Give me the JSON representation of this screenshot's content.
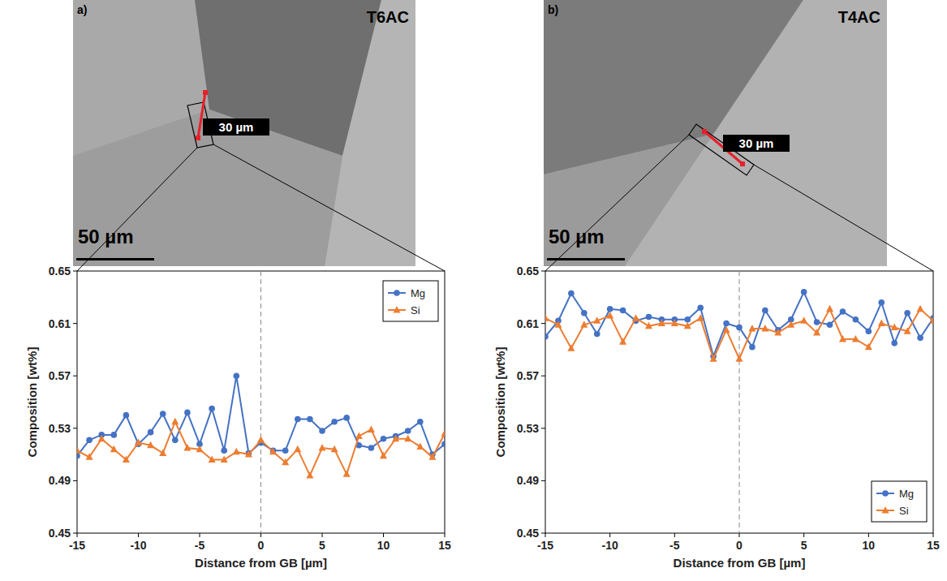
{
  "chart_data": [
    {
      "type": "line",
      "panel_label": "a)",
      "title": "T6AC",
      "annotations": [
        "30 µm",
        "50 µm"
      ],
      "x_label": "Distance from GB [µm]",
      "y_label": "Composition [wt%]",
      "x": [
        -15,
        -14,
        -13,
        -12,
        -11,
        -10,
        -9,
        -8,
        -7,
        -6,
        -5,
        -4,
        -3,
        -2,
        -1,
        0,
        1,
        2,
        3,
        4,
        5,
        6,
        7,
        8,
        9,
        10,
        11,
        12,
        13,
        14,
        15
      ],
      "xlim": [
        -15,
        15
      ],
      "xticks": [
        -15,
        -10,
        -5,
        0,
        5,
        10,
        15
      ],
      "ylim": [
        0.45,
        0.65
      ],
      "yticks": [
        0.45,
        0.49,
        0.53,
        0.57,
        0.61,
        0.65
      ],
      "legend": "upper right",
      "series": [
        {
          "name": "Mg",
          "color": "#4472c4",
          "marker": "circle",
          "line_style": "solid",
          "values": [
            0.509,
            0.521,
            0.525,
            0.525,
            0.54,
            0.518,
            0.527,
            0.541,
            0.521,
            0.542,
            0.518,
            0.545,
            0.513,
            0.57,
            0.511,
            0.519,
            0.513,
            0.513,
            0.537,
            0.537,
            0.528,
            0.535,
            0.538,
            0.517,
            0.515,
            0.522,
            0.524,
            0.528,
            0.535,
            0.51,
            0.518
          ]
        },
        {
          "name": "Si",
          "color": "#ed7d31",
          "marker": "triangle",
          "line_style": "solid",
          "values": [
            0.513,
            0.508,
            0.522,
            0.514,
            0.506,
            0.519,
            0.517,
            0.511,
            0.535,
            0.515,
            0.514,
            0.506,
            0.506,
            0.512,
            0.51,
            0.521,
            0.512,
            0.504,
            0.514,
            0.494,
            0.515,
            0.514,
            0.495,
            0.524,
            0.529,
            0.509,
            0.522,
            0.522,
            0.516,
            0.508,
            0.526
          ]
        }
      ]
    },
    {
      "type": "line",
      "panel_label": "b)",
      "title": "T4AC",
      "annotations": [
        "30 µm",
        "50 µm"
      ],
      "x_label": "Distance from GB [µm]",
      "y_label": "Composition [wt%]",
      "x": [
        -15,
        -14,
        -13,
        -12,
        -11,
        -10,
        -9,
        -8,
        -7,
        -6,
        -5,
        -4,
        -3,
        -2,
        -1,
        0,
        1,
        2,
        3,
        4,
        5,
        6,
        7,
        8,
        9,
        10,
        11,
        12,
        13,
        14,
        15
      ],
      "xlim": [
        -15,
        15
      ],
      "xticks": [
        -15,
        -10,
        -5,
        0,
        5,
        10,
        15
      ],
      "ylim": [
        0.45,
        0.65
      ],
      "yticks": [
        0.45,
        0.49,
        0.53,
        0.57,
        0.61,
        0.65
      ],
      "legend": "lower right",
      "series": [
        {
          "name": "Mg",
          "color": "#4472c4",
          "marker": "circle",
          "line_style": "solid",
          "values": [
            0.6,
            0.612,
            0.633,
            0.618,
            0.602,
            0.621,
            0.62,
            0.612,
            0.615,
            0.613,
            0.613,
            0.613,
            0.622,
            0.585,
            0.61,
            0.607,
            0.592,
            0.62,
            0.605,
            0.613,
            0.634,
            0.611,
            0.609,
            0.619,
            0.613,
            0.604,
            0.626,
            0.595,
            0.618,
            0.599,
            0.614
          ]
        },
        {
          "name": "Si",
          "color": "#ed7d31",
          "marker": "triangle",
          "line_style": "solid",
          "values": [
            0.614,
            0.609,
            0.591,
            0.609,
            0.612,
            0.616,
            0.596,
            0.614,
            0.608,
            0.61,
            0.61,
            0.608,
            0.614,
            0.583,
            0.605,
            0.583,
            0.606,
            0.606,
            0.603,
            0.609,
            0.612,
            0.603,
            0.621,
            0.598,
            0.598,
            0.592,
            0.61,
            0.607,
            0.604,
            0.621,
            0.612
          ]
        }
      ]
    }
  ]
}
